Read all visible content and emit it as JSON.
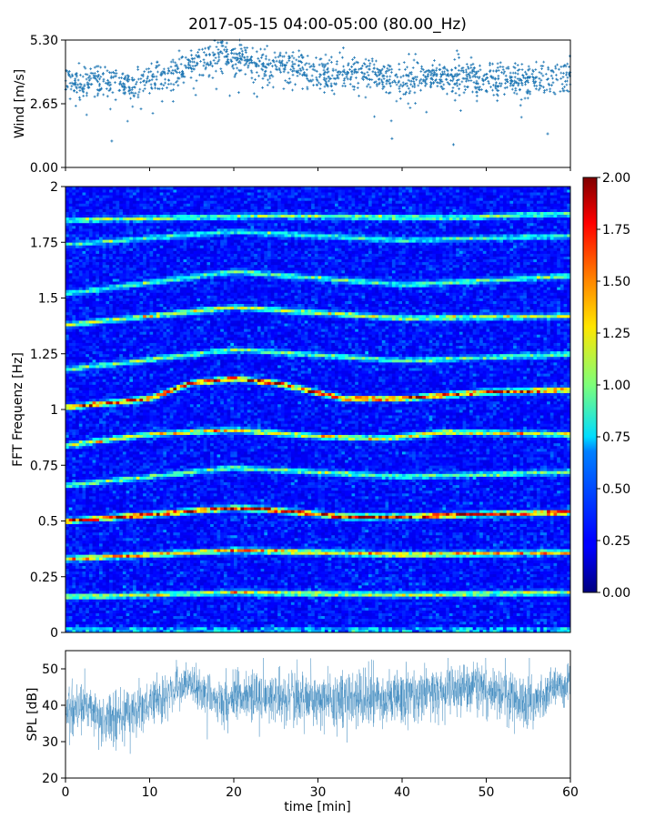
{
  "figure": {
    "title": "2017-05-15 04:00-05:00 (80.00_Hz)"
  },
  "chart_data": [
    {
      "type": "scatter",
      "name": "wind-panel",
      "ylabel": "Wind [m/s]",
      "xlim": [
        0,
        60
      ],
      "ylim": [
        0,
        5.3
      ],
      "yticks": [
        0.0,
        2.65,
        5.3
      ],
      "ytick_labels": [
        "0.00",
        "2.65",
        "5.30"
      ],
      "marker": "+",
      "color": "#1f77b4",
      "baseline_profile": [
        [
          0,
          3.5
        ],
        [
          5,
          3.6
        ],
        [
          8,
          3.4
        ],
        [
          10,
          3.7
        ],
        [
          15,
          4.3
        ],
        [
          18,
          4.7
        ],
        [
          20,
          4.5
        ],
        [
          25,
          4.2
        ],
        [
          30,
          3.9
        ],
        [
          35,
          4.0
        ],
        [
          40,
          3.6
        ],
        [
          45,
          3.8
        ],
        [
          50,
          3.7
        ],
        [
          55,
          3.6
        ],
        [
          60,
          3.9
        ]
      ],
      "outliers": [
        [
          5.5,
          1.1
        ],
        [
          38.8,
          1.2
        ],
        [
          46.1,
          0.95
        ],
        [
          57.3,
          1.4
        ]
      ],
      "grid": false
    },
    {
      "type": "heatmap",
      "name": "spectrogram",
      "ylabel": "FFT Frequenz [Hz]",
      "xlim": [
        0,
        60
      ],
      "ylim": [
        0,
        2
      ],
      "yticks": [
        0,
        0.25,
        0.5,
        0.75,
        1,
        1.25,
        1.5,
        1.75,
        2
      ],
      "ytick_labels": [
        "0",
        "0.25",
        "0.5",
        "0.75",
        "1",
        "1.25",
        "1.5",
        "1.75",
        "2"
      ],
      "colormap": "jet",
      "colorbar": {
        "range": [
          0,
          2
        ],
        "ticks": [
          0,
          0.25,
          0.5,
          0.75,
          1.0,
          1.25,
          1.5,
          1.75,
          2.0
        ],
        "tick_labels": [
          "0.00",
          "0.25",
          "0.50",
          "0.75",
          "1.00",
          "1.25",
          "1.50",
          "1.75",
          "2.00"
        ]
      },
      "ridges": [
        {
          "name": "harmonic-0.17",
          "path": [
            [
              0,
              0.16
            ],
            [
              20,
              0.18
            ],
            [
              40,
              0.17
            ],
            [
              60,
              0.18
            ]
          ],
          "strength": 1.1
        },
        {
          "name": "harmonic-0.35",
          "path": [
            [
              0,
              0.33
            ],
            [
              20,
              0.37
            ],
            [
              40,
              0.35
            ],
            [
              60,
              0.36
            ]
          ],
          "strength": 1.4
        },
        {
          "name": "harmonic-0.52",
          "path": [
            [
              0,
              0.5
            ],
            [
              10,
              0.53
            ],
            [
              20,
              0.56
            ],
            [
              25,
              0.55
            ],
            [
              33,
              0.52
            ],
            [
              40,
              0.52
            ],
            [
              48,
              0.53
            ],
            [
              60,
              0.54
            ]
          ],
          "strength": 1.85
        },
        {
          "name": "harmonic-0.67",
          "path": [
            [
              0,
              0.66
            ],
            [
              20,
              0.74
            ],
            [
              40,
              0.7
            ],
            [
              60,
              0.72
            ]
          ],
          "strength": 0.85
        },
        {
          "name": "harmonic-0.87",
          "path": [
            [
              0,
              0.84
            ],
            [
              10,
              0.89
            ],
            [
              20,
              0.91
            ],
            [
              30,
              0.88
            ],
            [
              38,
              0.87
            ],
            [
              45,
              0.9
            ],
            [
              60,
              0.89
            ]
          ],
          "strength": 1.2
        },
        {
          "name": "harmonic-1.05",
          "path": [
            [
              0,
              1.01
            ],
            [
              10,
              1.05
            ],
            [
              15,
              1.12
            ],
            [
              20,
              1.14
            ],
            [
              25,
              1.12
            ],
            [
              33,
              1.05
            ],
            [
              40,
              1.05
            ],
            [
              50,
              1.08
            ],
            [
              60,
              1.09
            ]
          ],
          "strength": 1.8
        },
        {
          "name": "harmonic-1.25",
          "path": [
            [
              0,
              1.18
            ],
            [
              20,
              1.27
            ],
            [
              40,
              1.22
            ],
            [
              60,
              1.25
            ]
          ],
          "strength": 0.8
        },
        {
          "name": "harmonic-1.40",
          "path": [
            [
              0,
              1.38
            ],
            [
              20,
              1.46
            ],
            [
              40,
              1.41
            ],
            [
              60,
              1.42
            ]
          ],
          "strength": 1.0
        },
        {
          "name": "harmonic-1.55",
          "path": [
            [
              0,
              1.52
            ],
            [
              20,
              1.62
            ],
            [
              40,
              1.56
            ],
            [
              60,
              1.6
            ]
          ],
          "strength": 0.8
        },
        {
          "name": "harmonic-1.75",
          "path": [
            [
              0,
              1.74
            ],
            [
              20,
              1.8
            ],
            [
              40,
              1.76
            ],
            [
              60,
              1.78
            ]
          ],
          "strength": 0.7
        },
        {
          "name": "harmonic-1.87",
          "path": [
            [
              0,
              1.85
            ],
            [
              25,
              1.87
            ],
            [
              45,
              1.86
            ],
            [
              60,
              1.88
            ]
          ],
          "strength": 0.9
        }
      ],
      "background_level": 0.2
    },
    {
      "type": "line",
      "name": "spl-panel",
      "ylabel": "SPL [dB]",
      "xlabel": "time [min]",
      "xlim": [
        0,
        60
      ],
      "ylim": [
        20,
        55
      ],
      "xticks": [
        0,
        10,
        20,
        30,
        40,
        50,
        60
      ],
      "yticks": [
        20,
        30,
        40,
        50
      ],
      "color": "#1f77b4",
      "envelope": [
        [
          0,
          39,
          9
        ],
        [
          3,
          40,
          8
        ],
        [
          4,
          36,
          8
        ],
        [
          8,
          38,
          9
        ],
        [
          12,
          43,
          8
        ],
        [
          15,
          46,
          7
        ],
        [
          18,
          42,
          9
        ],
        [
          25,
          42,
          9
        ],
        [
          30,
          42,
          10
        ],
        [
          38,
          42,
          10
        ],
        [
          45,
          44,
          9
        ],
        [
          50,
          45,
          9
        ],
        [
          55,
          40,
          10
        ],
        [
          58,
          45,
          8
        ],
        [
          60,
          46,
          7
        ]
      ],
      "grid": false
    }
  ]
}
